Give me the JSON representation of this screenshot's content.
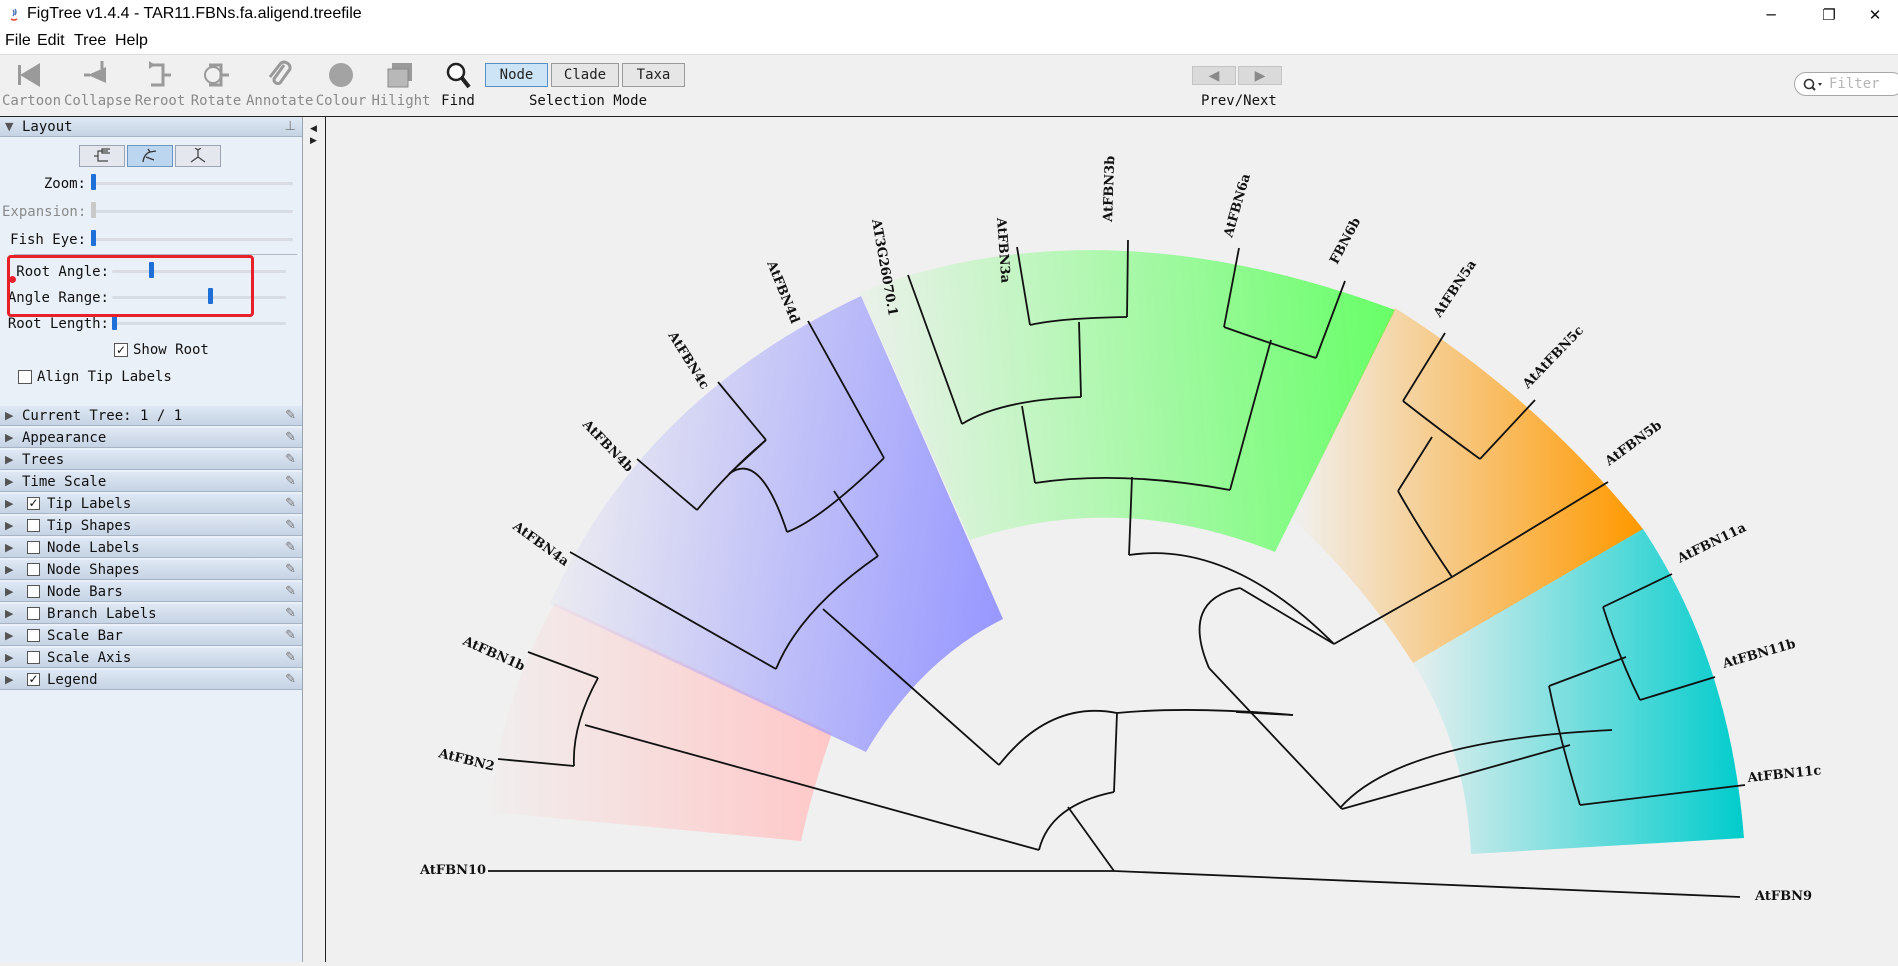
{
  "window": {
    "title": "FigTree v1.4.4 - TAR11.FBNs.fa.aligend.treefile",
    "minimize": "─",
    "restore": "❐",
    "close": "✕"
  },
  "menu": [
    "File",
    "Edit",
    "Tree",
    "Help"
  ],
  "toolbar": {
    "tools": [
      "Cartoon",
      "Collapse",
      "Reroot",
      "Rotate",
      "Annotate",
      "Colour",
      "Hilight",
      "Find"
    ],
    "selection_modes": [
      "Node",
      "Clade",
      "Taxa"
    ],
    "selection_mode_caption": "Selection Mode",
    "selected_mode": "Node",
    "prev_next_caption": "Prev/Next",
    "filter_placeholder": "Filter"
  },
  "sidebar": {
    "layout_title": "Layout",
    "sliders": [
      {
        "label": "Zoom:",
        "enabled": true,
        "value": 0.0
      },
      {
        "label": "Expansion:",
        "enabled": false,
        "value": 0.0
      },
      {
        "label": "Fish Eye:",
        "enabled": true,
        "value": 0.0
      },
      {
        "label": "Root Angle:",
        "enabled": true,
        "value": 0.22
      },
      {
        "label": "Angle Range:",
        "enabled": true,
        "value": 0.57
      },
      {
        "label": "Root Length:",
        "enabled": true,
        "value": 0.0
      }
    ],
    "show_root_label": "Show Root",
    "show_root_checked": "✓",
    "align_tip_labels_label": "Align Tip Labels",
    "sections": [
      {
        "label": "Current Tree: 1 / 1",
        "checkbox": false
      },
      {
        "label": "Appearance",
        "checkbox": false
      },
      {
        "label": "Trees",
        "checkbox": false
      },
      {
        "label": "Time Scale",
        "checkbox": false
      },
      {
        "label": "Tip Labels",
        "checkbox": true,
        "checked": "✓"
      },
      {
        "label": "Tip Shapes",
        "checkbox": true,
        "checked": ""
      },
      {
        "label": "Node Labels",
        "checkbox": true,
        "checked": ""
      },
      {
        "label": "Node Shapes",
        "checkbox": true,
        "checked": ""
      },
      {
        "label": "Node Bars",
        "checkbox": true,
        "checked": ""
      },
      {
        "label": "Branch Labels",
        "checkbox": true,
        "checked": ""
      },
      {
        "label": "Scale Bar",
        "checkbox": true,
        "checked": ""
      },
      {
        "label": "Scale Axis",
        "checkbox": true,
        "checked": ""
      },
      {
        "label": "Legend",
        "checkbox": true,
        "checked": "✓"
      }
    ]
  },
  "tree": {
    "tips": [
      "AtFBN10",
      "AtFBN2",
      "AtFBN1b",
      "AtFBN4a",
      "AtFBN4b",
      "AtFBN4c",
      "AtFBN4d",
      "AT3G26070.1",
      "AtFBN3a",
      "AtFBN3b",
      "AtFBN6a",
      "FBN6b",
      "AtFBN5a",
      "AtAtFBN5c",
      "AtFBN5b",
      "AtFBN11a",
      "AtFBN11b",
      "AtFBN11c",
      "AtFBN9"
    ],
    "clade_colors": [
      "#ffc8c8",
      "#9999ff",
      "#66ff66",
      "#ff9900",
      "#00cccc"
    ]
  }
}
